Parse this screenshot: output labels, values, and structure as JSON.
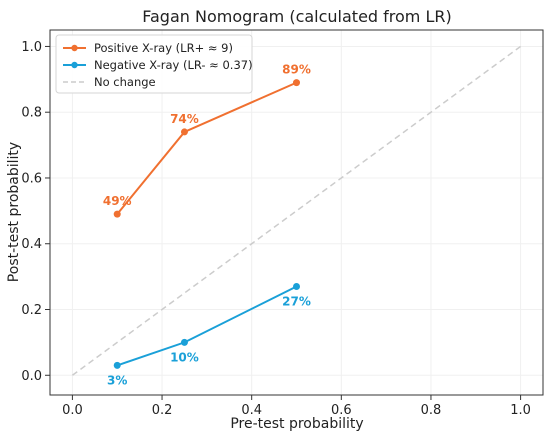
{
  "chart_data": {
    "type": "line",
    "title": "Fagan Nomogram (calculated from LR)",
    "xlabel": "Pre-test probability",
    "ylabel": "Post-test probability",
    "xlim": [
      -0.05,
      1.05
    ],
    "ylim": [
      -0.06,
      1.05
    ],
    "xticks": [
      0.0,
      0.2,
      0.4,
      0.6,
      0.8,
      1.0
    ],
    "yticks": [
      0.0,
      0.2,
      0.4,
      0.6,
      0.8,
      1.0
    ],
    "xtick_labels": [
      "0.0",
      "0.2",
      "0.4",
      "0.6",
      "0.8",
      "1.0"
    ],
    "ytick_labels": [
      "0.0",
      "0.2",
      "0.4",
      "0.6",
      "0.8",
      "1.0"
    ],
    "grid": true,
    "legend_position": "top-left",
    "series": [
      {
        "name": "Positive X-ray (LR+ ≈ 9)",
        "color": "#f07030",
        "x": [
          0.1,
          0.25,
          0.5
        ],
        "y": [
          0.49,
          0.74,
          0.89
        ],
        "labels": [
          "49%",
          "74%",
          "89%"
        ],
        "label_side": "above"
      },
      {
        "name": "Negative X-ray (LR- ≈ 0.37)",
        "color": "#1aa0d8",
        "x": [
          0.1,
          0.25,
          0.5
        ],
        "y": [
          0.03,
          0.1,
          0.27
        ],
        "labels": [
          "3%",
          "10%",
          "27%"
        ],
        "label_side": "below"
      }
    ],
    "reference_line": {
      "name": "No change",
      "color": "#cccccc",
      "x": [
        0.0,
        1.0
      ],
      "y": [
        0.0,
        1.0
      ]
    }
  }
}
